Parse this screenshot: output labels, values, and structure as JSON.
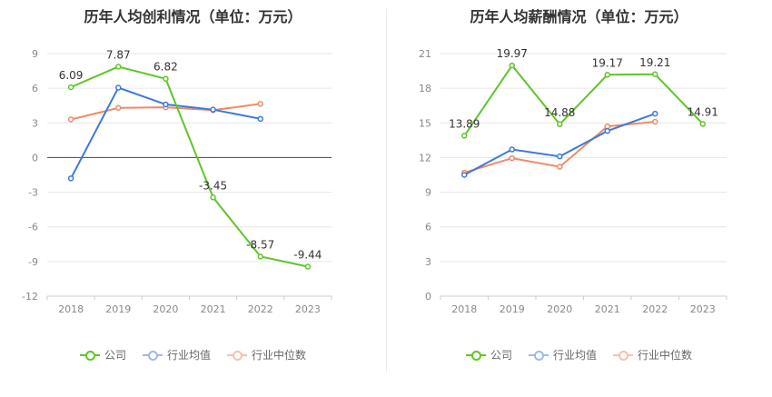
{
  "chart_data": [
    {
      "type": "line",
      "title": "历年人均创利情况（单位：万元）",
      "categories": [
        "2018",
        "2019",
        "2020",
        "2021",
        "2022",
        "2023"
      ],
      "ylim": [
        -12,
        9
      ],
      "yticks": [
        9,
        6,
        3,
        0,
        -3,
        -6,
        -9,
        -12
      ],
      "grid": true,
      "legend_position": "bottom",
      "series": [
        {
          "name": "公司",
          "color": "#5fc529",
          "values": [
            6.09,
            7.87,
            6.82,
            -3.45,
            -8.57,
            -9.44
          ],
          "labels": [
            "6.09",
            "7.87",
            "6.82",
            "-3.45",
            "-8.57",
            "-9.44"
          ]
        },
        {
          "name": "行业均值",
          "color": "#3e79d9",
          "values": [
            -1.8,
            6.05,
            4.6,
            4.15,
            3.35,
            null
          ],
          "labels": []
        },
        {
          "name": "行业中位数",
          "color": "#ee8a65",
          "values": [
            3.3,
            4.3,
            4.35,
            4.1,
            4.65,
            null
          ],
          "labels": []
        }
      ]
    },
    {
      "type": "line",
      "title": "历年人均薪酬情况（单位：万元）",
      "categories": [
        "2018",
        "2019",
        "2020",
        "2021",
        "2022",
        "2023"
      ],
      "ylim": [
        0,
        21
      ],
      "yticks": [
        21,
        18,
        15,
        12,
        9,
        6,
        3,
        0
      ],
      "grid": true,
      "legend_position": "bottom",
      "series": [
        {
          "name": "公司",
          "color": "#5fc529",
          "values": [
            13.89,
            19.97,
            14.88,
            19.17,
            19.21,
            14.91
          ],
          "labels": [
            "13.89",
            "19.97",
            "14.88",
            "19.17",
            "19.21",
            "14.91"
          ]
        },
        {
          "name": "行业均值",
          "color": "#3e79d9",
          "values": [
            10.5,
            12.7,
            12.1,
            14.3,
            15.8,
            null
          ],
          "labels": []
        },
        {
          "name": "行业中位数",
          "color": "#ee8a65",
          "values": [
            10.7,
            11.95,
            11.2,
            14.7,
            15.1,
            null
          ],
          "labels": []
        }
      ]
    }
  ]
}
